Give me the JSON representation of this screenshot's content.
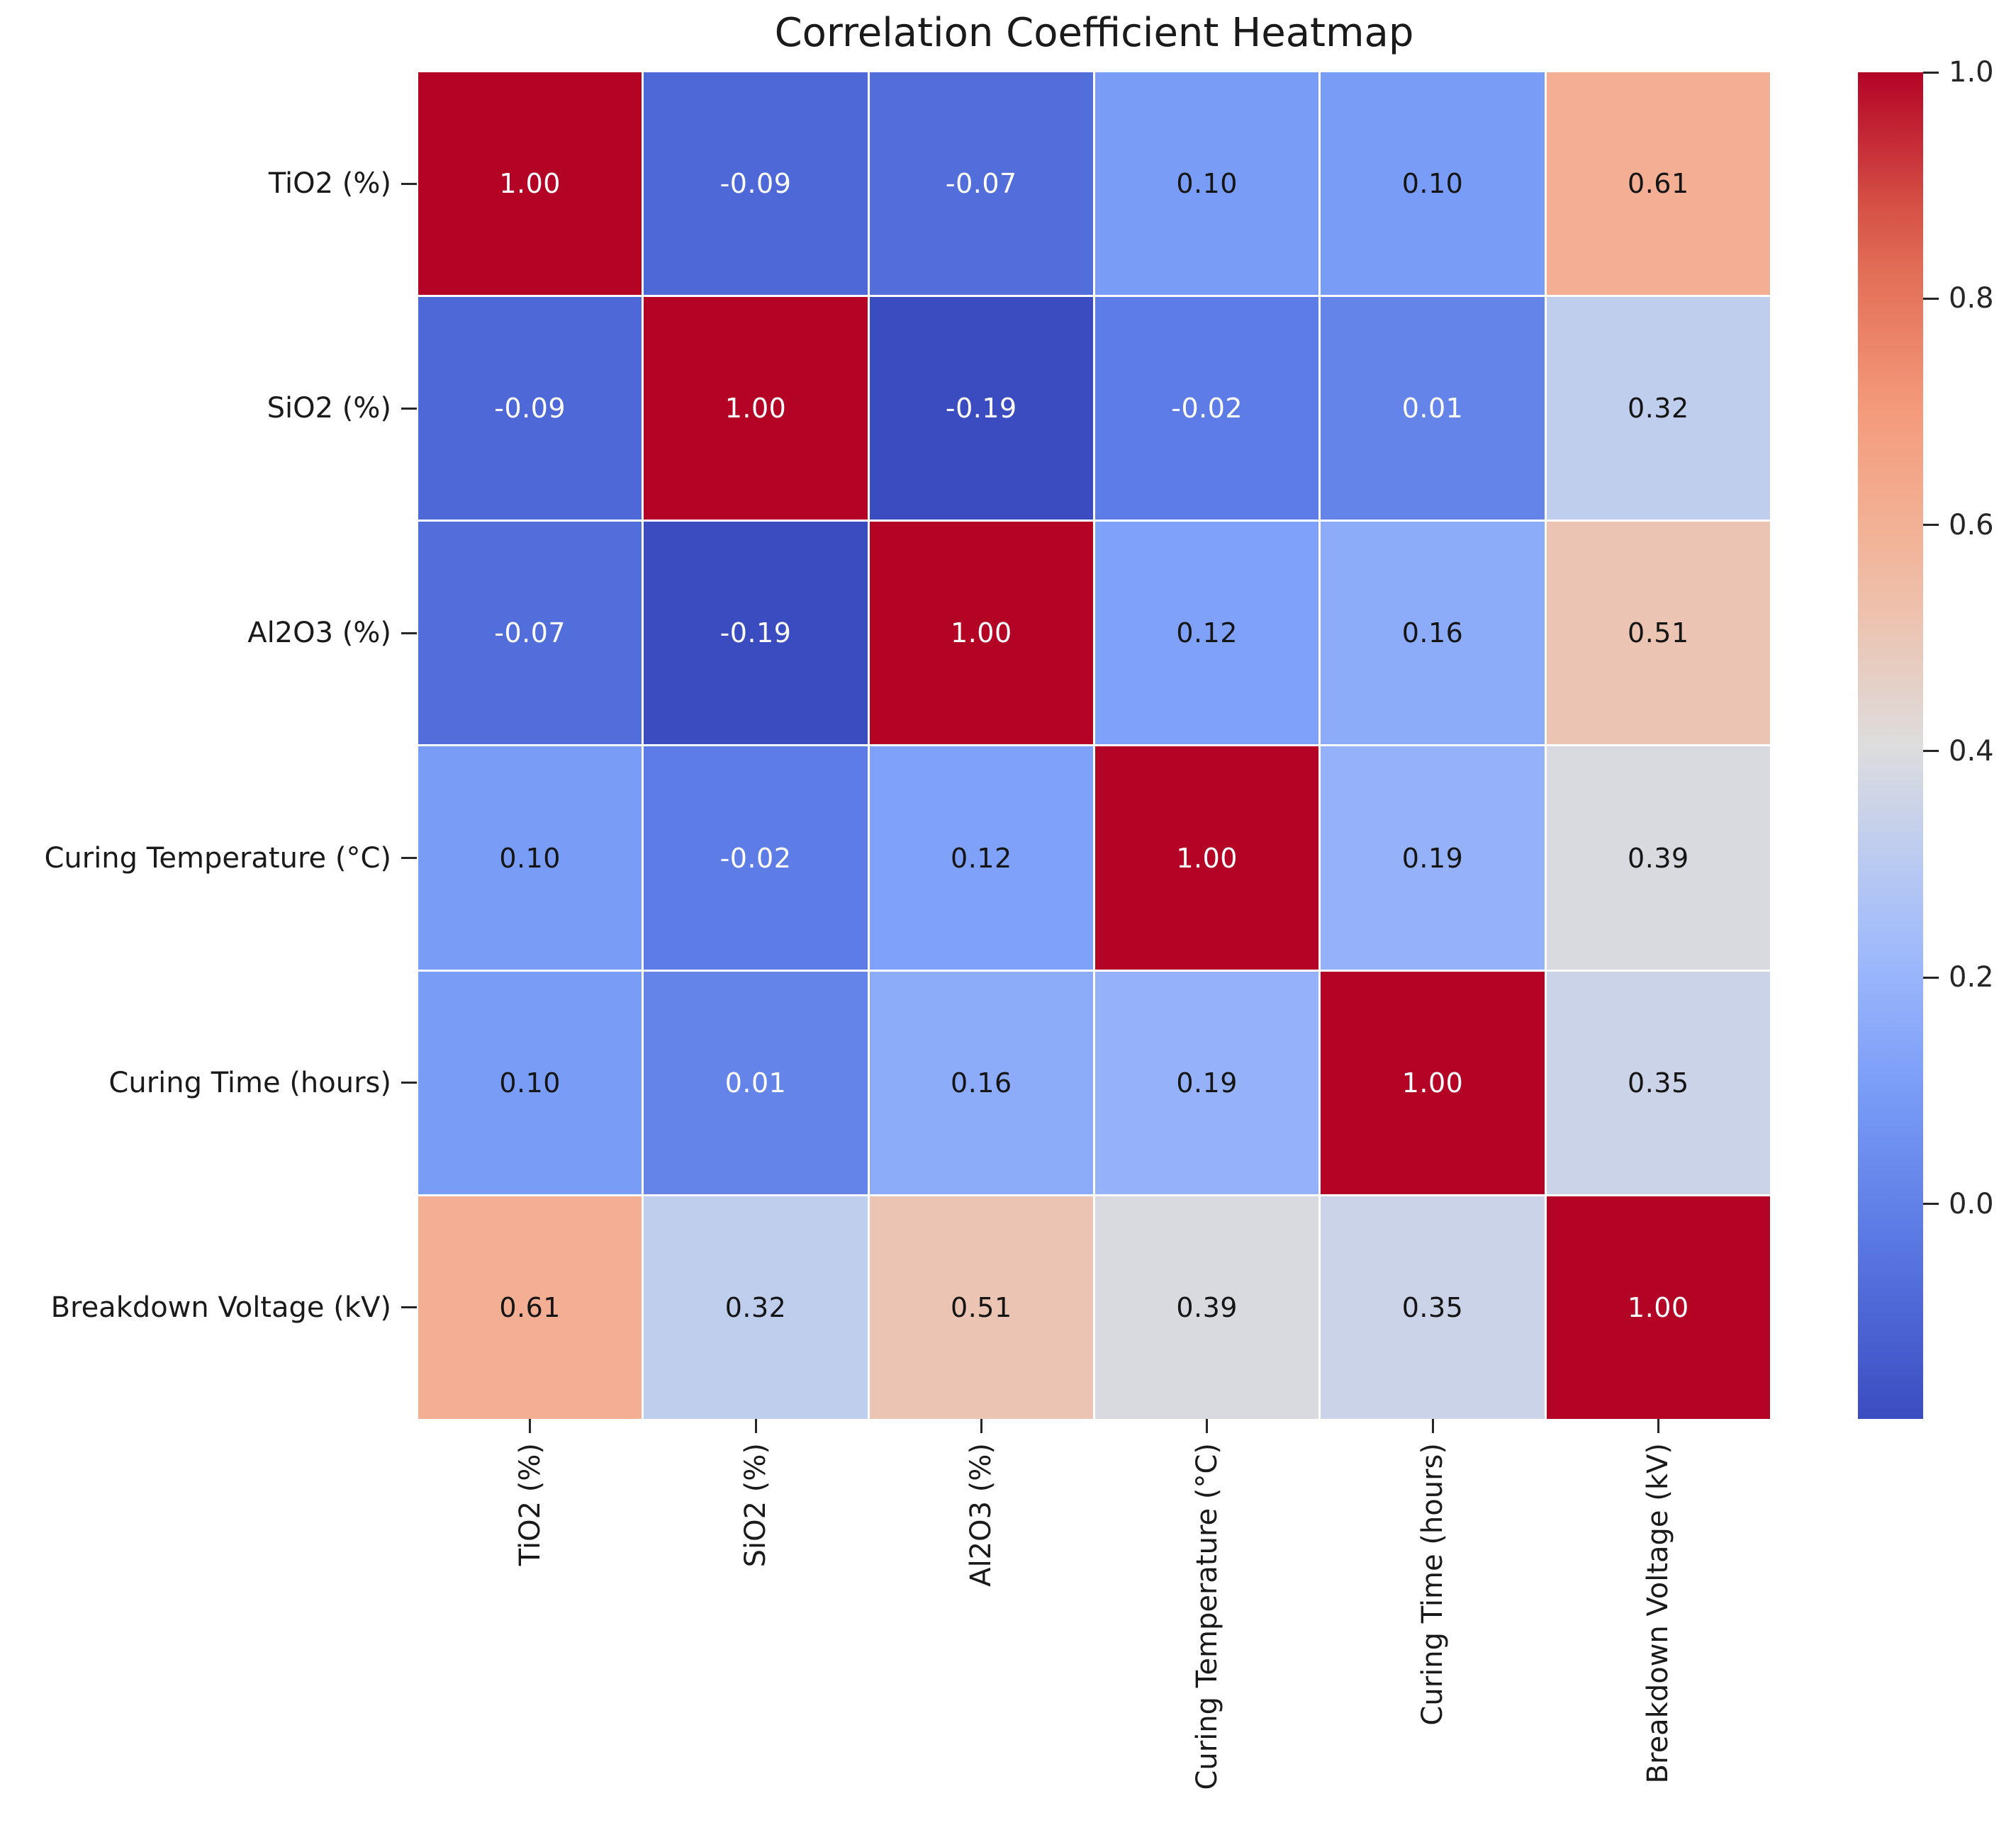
{
  "title": "Correlation Coefficient Heatmap",
  "chart_data": {
    "type": "heatmap",
    "title": "Correlation Coefficient Heatmap",
    "categories": [
      "TiO2 (%)",
      "SiO2 (%)",
      "Al2O3 (%)",
      "Curing Temperature (°C)",
      "Curing Time (hours)",
      "Breakdown Voltage (kV)"
    ],
    "matrix": [
      [
        1.0,
        -0.09,
        -0.07,
        0.1,
        0.1,
        0.61
      ],
      [
        -0.09,
        1.0,
        -0.19,
        -0.02,
        0.01,
        0.32
      ],
      [
        -0.07,
        -0.19,
        1.0,
        0.12,
        0.16,
        0.51
      ],
      [
        0.1,
        -0.02,
        0.12,
        1.0,
        0.19,
        0.39
      ],
      [
        0.1,
        0.01,
        0.16,
        0.19,
        1.0,
        0.35
      ],
      [
        0.61,
        0.32,
        0.51,
        0.39,
        0.35,
        1.0
      ]
    ],
    "colormap": "coolwarm",
    "vmin": -0.19,
    "vmax": 1.0,
    "value_format": "0.00",
    "colorbar_ticks": [
      "1.0",
      "0.8",
      "0.6",
      "0.4",
      "0.2",
      "0.0"
    ],
    "legend_position": "right-colorbar",
    "grid": false,
    "accent_colors": {
      "max_red": "#b40426",
      "min_blue": "#3b4cc0",
      "mid_gray": "#dddddd",
      "text_dark": "#1a1a1a",
      "text_light": "#ffffff"
    }
  }
}
